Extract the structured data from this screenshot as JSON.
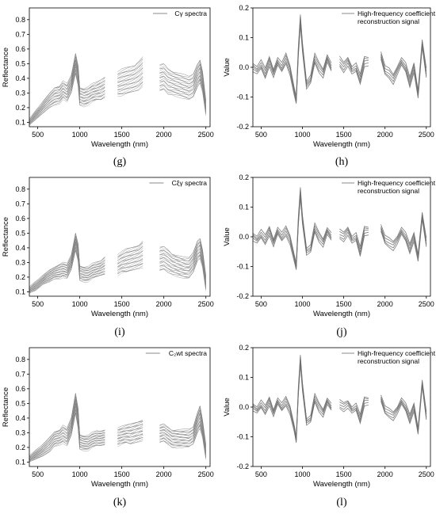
{
  "chart_data": [
    {
      "type": "line",
      "panel": "(g)",
      "xlabel": "Wavelength (nm)",
      "ylabel": "Reflectance",
      "xlim": [
        400,
        2550
      ],
      "ylim": [
        0.07,
        0.88
      ],
      "xticks": [
        500,
        1000,
        1500,
        2000,
        2500
      ],
      "yticks": [
        0.1,
        0.2,
        0.3,
        0.4,
        0.5,
        0.6,
        0.7,
        0.8
      ],
      "legend": "top-right",
      "series": [
        {
          "name": "Cγ spectra"
        }
      ],
      "x": [
        400,
        480,
        560,
        640,
        700,
        760,
        800,
        850,
        900,
        950,
        980,
        1000,
        1050,
        1100,
        1150,
        1200,
        1250,
        1300,
        1350,
        1400,
        1450,
        1500,
        1550,
        1600,
        1650,
        1700,
        1750,
        1800,
        1900,
        1950,
        2000,
        2050,
        2100,
        2150,
        2200,
        2250,
        2300,
        2350,
        2400,
        2430,
        2460,
        2500
      ],
      "mean": [
        0.1,
        0.15,
        0.2,
        0.25,
        0.28,
        0.29,
        0.32,
        0.3,
        0.36,
        0.5,
        0.42,
        0.28,
        0.27,
        0.28,
        0.3,
        0.31,
        0.32,
        0.34,
        null,
        null,
        0.36,
        0.37,
        0.38,
        0.39,
        0.4,
        0.42,
        0.45,
        null,
        null,
        0.4,
        0.41,
        0.38,
        0.37,
        0.36,
        0.35,
        0.34,
        0.33,
        0.35,
        0.42,
        0.45,
        0.38,
        0.2
      ],
      "spread": [
        0.02,
        0.03,
        0.04,
        0.05,
        0.06,
        0.06,
        0.06,
        0.06,
        0.06,
        0.07,
        0.07,
        0.06,
        0.06,
        0.06,
        0.06,
        0.06,
        0.07,
        0.07,
        null,
        null,
        0.08,
        0.09,
        0.09,
        0.09,
        0.09,
        0.1,
        0.1,
        null,
        null,
        0.09,
        0.09,
        0.09,
        0.08,
        0.08,
        0.08,
        0.08,
        0.08,
        0.08,
        0.08,
        0.08,
        0.07,
        0.05
      ]
    },
    {
      "type": "line",
      "panel": "(h)",
      "xlabel": "Wavelength (nm)",
      "ylabel": "Value",
      "xlim": [
        400,
        2550
      ],
      "ylim": [
        -0.2,
        0.2
      ],
      "xticks": [
        500,
        1000,
        1500,
        2000,
        2500
      ],
      "yticks": [
        -0.2,
        -0.1,
        0.0,
        0.1,
        0.2
      ],
      "legend": "top-right",
      "series": [
        {
          "name": "High-frequency coefficient reconstruction signal"
        }
      ],
      "x": [
        400,
        450,
        500,
        550,
        600,
        650,
        700,
        750,
        800,
        850,
        900,
        925,
        950,
        975,
        1000,
        1050,
        1100,
        1150,
        1200,
        1250,
        1300,
        1350,
        1450,
        1500,
        1550,
        1600,
        1650,
        1700,
        1750,
        1800,
        1950,
        2000,
        2050,
        2100,
        2150,
        2200,
        2250,
        2300,
        2350,
        2400,
        2450,
        2500
      ],
      "values": [
        0.0,
        -0.01,
        0.01,
        -0.02,
        0.02,
        -0.02,
        0.02,
        0.0,
        0.03,
        -0.01,
        -0.08,
        -0.11,
        0.05,
        0.16,
        0.07,
        -0.06,
        -0.04,
        0.03,
        0.0,
        -0.02,
        0.03,
        0.0,
        0.02,
        0.0,
        0.02,
        -0.01,
        0.0,
        -0.04,
        0.02,
        0.02,
        0.04,
        -0.01,
        -0.02,
        -0.04,
        -0.01,
        0.02,
        0.0,
        -0.05,
        0.0,
        -0.09,
        0.08,
        -0.02
      ],
      "band": 0.015
    },
    {
      "type": "line",
      "panel": "(i)",
      "xlabel": "Wavelength (nm)",
      "ylabel": "Reflectance",
      "xlim": [
        400,
        2550
      ],
      "ylim": [
        0.07,
        0.88
      ],
      "xticks": [
        500,
        1000,
        1500,
        2000,
        2500
      ],
      "yticks": [
        0.1,
        0.2,
        0.3,
        0.4,
        0.5,
        0.6,
        0.7,
        0.8
      ],
      "legend": "top-right",
      "series": [
        {
          "name": "Cξγ spectra"
        }
      ],
      "x": [
        400,
        480,
        560,
        640,
        700,
        760,
        800,
        850,
        900,
        950,
        980,
        1000,
        1050,
        1100,
        1150,
        1200,
        1250,
        1300,
        1350,
        1400,
        1450,
        1500,
        1550,
        1600,
        1650,
        1700,
        1750,
        1800,
        1900,
        1950,
        2000,
        2050,
        2100,
        2150,
        2200,
        2250,
        2300,
        2350,
        2400,
        2430,
        2460,
        2500
      ],
      "mean": [
        0.11,
        0.14,
        0.18,
        0.21,
        0.23,
        0.24,
        0.25,
        0.24,
        0.3,
        0.44,
        0.37,
        0.23,
        0.22,
        0.22,
        0.24,
        0.25,
        0.26,
        0.28,
        null,
        null,
        0.28,
        0.3,
        0.31,
        0.32,
        0.33,
        0.34,
        0.36,
        null,
        null,
        0.32,
        0.33,
        0.31,
        0.29,
        0.28,
        0.27,
        0.26,
        0.26,
        0.3,
        0.38,
        0.4,
        0.33,
        0.16
      ],
      "spread": [
        0.02,
        0.03,
        0.03,
        0.04,
        0.04,
        0.05,
        0.05,
        0.05,
        0.05,
        0.06,
        0.06,
        0.05,
        0.05,
        0.05,
        0.05,
        0.05,
        0.05,
        0.06,
        null,
        null,
        0.07,
        0.07,
        0.08,
        0.08,
        0.08,
        0.08,
        0.09,
        null,
        null,
        0.08,
        0.08,
        0.08,
        0.07,
        0.07,
        0.07,
        0.07,
        0.07,
        0.07,
        0.07,
        0.07,
        0.06,
        0.05
      ]
    },
    {
      "type": "line",
      "panel": "(j)",
      "xlabel": "Wavelength (nm)",
      "ylabel": "Value",
      "xlim": [
        400,
        2550
      ],
      "ylim": [
        -0.2,
        0.2
      ],
      "xticks": [
        500,
        1000,
        1500,
        2000,
        2500
      ],
      "yticks": [
        -0.2,
        -0.1,
        0.0,
        0.1,
        0.2
      ],
      "legend": "top-right",
      "series": [
        {
          "name": "High-frequency coefficient reconstruction signal"
        }
      ],
      "x": [
        400,
        450,
        500,
        550,
        600,
        650,
        700,
        750,
        800,
        850,
        900,
        925,
        950,
        975,
        1000,
        1050,
        1100,
        1150,
        1200,
        1250,
        1300,
        1350,
        1450,
        1500,
        1550,
        1600,
        1650,
        1700,
        1750,
        1800,
        1950,
        2000,
        2050,
        2100,
        2150,
        2200,
        2250,
        2300,
        2350,
        2400,
        2450,
        2500
      ],
      "values": [
        0.0,
        -0.01,
        0.01,
        -0.01,
        0.02,
        -0.02,
        0.02,
        0.0,
        0.02,
        -0.01,
        -0.07,
        -0.1,
        0.05,
        0.15,
        0.06,
        -0.05,
        -0.04,
        0.03,
        0.0,
        -0.02,
        0.02,
        0.0,
        0.01,
        0.0,
        0.02,
        -0.01,
        0.0,
        -0.05,
        0.02,
        0.02,
        0.03,
        -0.01,
        -0.02,
        -0.03,
        -0.01,
        0.02,
        0.0,
        -0.04,
        0.0,
        -0.07,
        0.07,
        -0.02
      ],
      "band": 0.014
    },
    {
      "type": "line",
      "panel": "(k)",
      "xlabel": "Wavelength (nm)",
      "ylabel": "Reflectance",
      "xlim": [
        400,
        2550
      ],
      "ylim": [
        0.07,
        0.88
      ],
      "xticks": [
        500,
        1000,
        1500,
        2000,
        2500
      ],
      "yticks": [
        0.1,
        0.2,
        0.3,
        0.4,
        0.5,
        0.6,
        0.7,
        0.8
      ],
      "legend": "top-right",
      "series": [
        {
          "name": "C₂wt spectra"
        }
      ],
      "x": [
        400,
        480,
        560,
        640,
        700,
        760,
        800,
        850,
        900,
        950,
        980,
        1000,
        1050,
        1100,
        1150,
        1200,
        1250,
        1300,
        1350,
        1400,
        1450,
        1500,
        1550,
        1600,
        1650,
        1700,
        1750,
        1800,
        1900,
        1950,
        2000,
        2050,
        2100,
        2150,
        2200,
        2250,
        2300,
        2350,
        2400,
        2430,
        2460,
        2500
      ],
      "mean": [
        0.12,
        0.15,
        0.18,
        0.22,
        0.26,
        0.27,
        0.29,
        0.27,
        0.34,
        0.5,
        0.4,
        0.24,
        0.23,
        0.23,
        0.25,
        0.26,
        0.26,
        0.27,
        null,
        null,
        0.27,
        0.28,
        0.29,
        0.29,
        0.3,
        0.31,
        0.32,
        null,
        null,
        0.29,
        0.3,
        0.28,
        0.26,
        0.26,
        0.26,
        0.26,
        0.26,
        0.28,
        0.37,
        0.41,
        0.33,
        0.17
      ],
      "spread": [
        0.02,
        0.03,
        0.04,
        0.05,
        0.05,
        0.05,
        0.06,
        0.06,
        0.06,
        0.07,
        0.07,
        0.05,
        0.05,
        0.05,
        0.05,
        0.05,
        0.05,
        0.05,
        null,
        null,
        0.06,
        0.06,
        0.06,
        0.07,
        0.07,
        0.07,
        0.07,
        null,
        null,
        0.06,
        0.06,
        0.06,
        0.06,
        0.06,
        0.06,
        0.06,
        0.06,
        0.06,
        0.07,
        0.08,
        0.06,
        0.05
      ]
    },
    {
      "type": "line",
      "panel": "(l)",
      "xlabel": "Wavelength (nm)",
      "ylabel": "Value",
      "xlim": [
        400,
        2550
      ],
      "ylim": [
        -0.2,
        0.2
      ],
      "xticks": [
        500,
        1000,
        1500,
        2000,
        2500
      ],
      "yticks": [
        -0.2,
        -0.1,
        0.0,
        0.1,
        0.2
      ],
      "legend": "top-right",
      "series": [
        {
          "name": "High-frequency coefficient reconstruction signal"
        }
      ],
      "x": [
        400,
        450,
        500,
        550,
        600,
        650,
        700,
        750,
        800,
        850,
        900,
        925,
        950,
        975,
        1000,
        1050,
        1100,
        1150,
        1200,
        1250,
        1300,
        1350,
        1450,
        1500,
        1550,
        1600,
        1650,
        1700,
        1750,
        1800,
        1950,
        2000,
        2050,
        2100,
        2150,
        2200,
        2250,
        2300,
        2350,
        2400,
        2450,
        2500
      ],
      "values": [
        0.0,
        -0.01,
        0.01,
        -0.01,
        0.02,
        -0.02,
        0.02,
        0.0,
        0.02,
        -0.01,
        -0.07,
        -0.11,
        0.05,
        0.16,
        0.07,
        -0.05,
        -0.04,
        0.03,
        0.0,
        -0.02,
        0.02,
        0.0,
        0.01,
        0.0,
        0.01,
        -0.01,
        0.0,
        -0.04,
        0.02,
        0.02,
        0.03,
        -0.01,
        -0.02,
        -0.03,
        -0.01,
        0.02,
        0.0,
        -0.04,
        0.0,
        -0.08,
        0.08,
        -0.03
      ],
      "band": 0.013
    }
  ]
}
